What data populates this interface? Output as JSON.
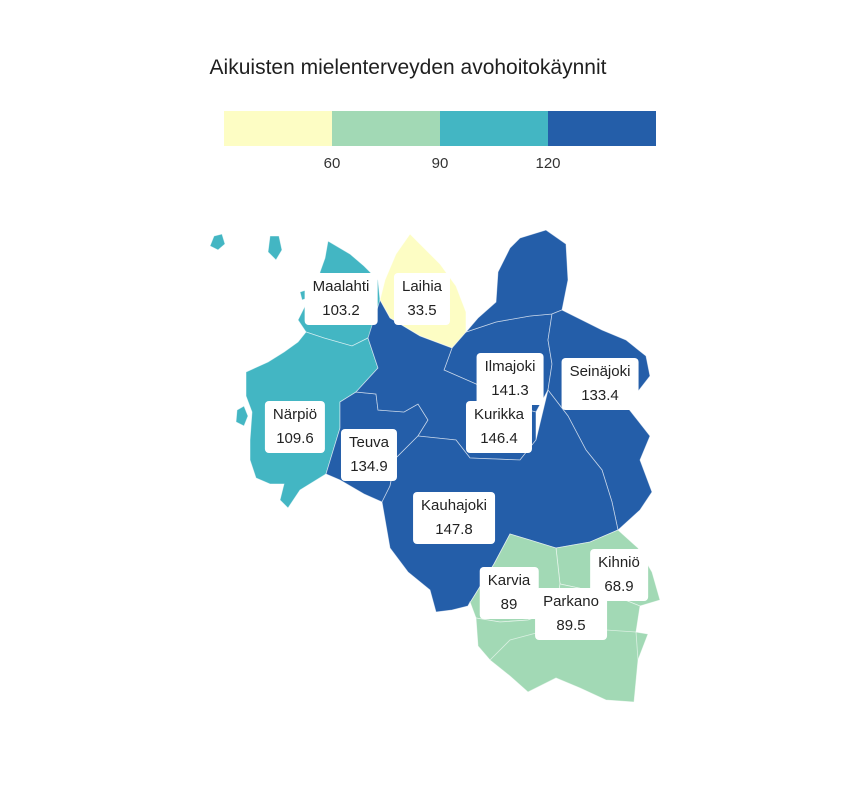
{
  "title": "Aikuisten mielenterveyden avohoitokäynnit",
  "legend": {
    "colors": [
      "#fdfdc4",
      "#a2d9b5",
      "#43b6c3",
      "#245ea9"
    ],
    "ticks": [
      "60",
      "90",
      "120"
    ]
  },
  "municipalities": [
    {
      "name": "Maalahti",
      "value": "103.2",
      "color": "#43b6c3"
    },
    {
      "name": "Laihia",
      "value": "33.5",
      "color": "#fdfdc4"
    },
    {
      "name": "Ilmajoki",
      "value": "141.3",
      "color": "#245ea9"
    },
    {
      "name": "Seinäjoki",
      "value": "133.4",
      "color": "#245ea9"
    },
    {
      "name": "Närpiö",
      "value": "109.6",
      "color": "#43b6c3"
    },
    {
      "name": "Kurikka",
      "value": "146.4",
      "color": "#245ea9"
    },
    {
      "name": "Teuva",
      "value": "134.9",
      "color": "#245ea9"
    },
    {
      "name": "Kauhajoki",
      "value": "147.8",
      "color": "#245ea9"
    },
    {
      "name": "Kihniö",
      "value": "68.9",
      "color": "#a2d9b5"
    },
    {
      "name": "Karvia",
      "value": "89",
      "color": "#a2d9b5"
    },
    {
      "name": "Parkano",
      "value": "89.5",
      "color": "#a2d9b5"
    }
  ]
}
